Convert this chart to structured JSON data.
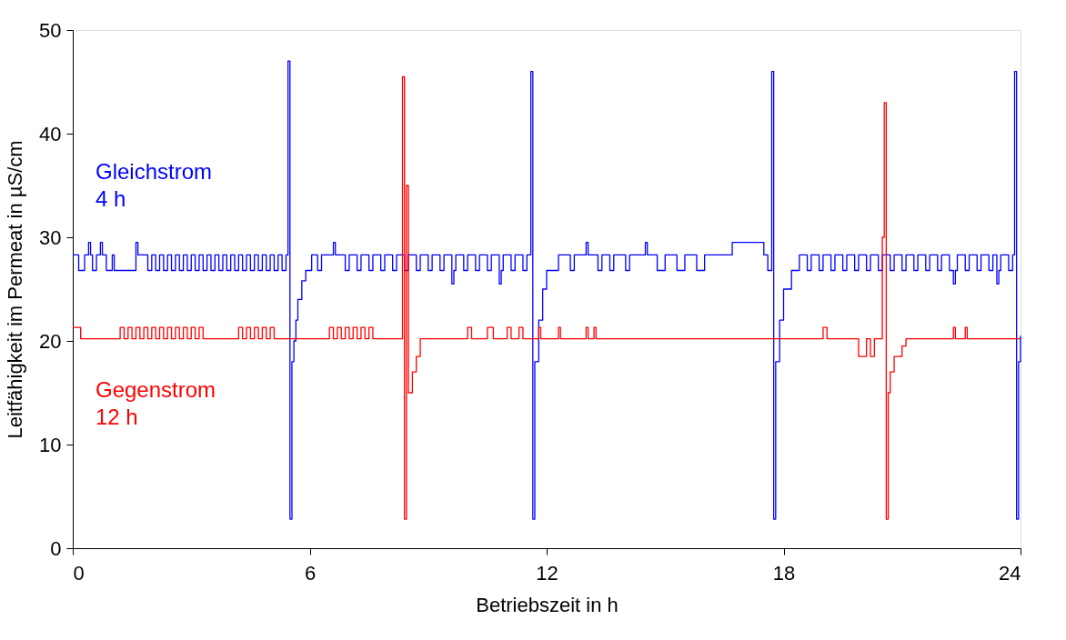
{
  "chart_data": {
    "type": "step",
    "xlabel": "Betriebszeit in h",
    "ylabel": "Leitfähigkeit im Permeat in µS/cm",
    "xlim": [
      0,
      24
    ],
    "ylim": [
      0,
      50
    ],
    "xticks": [
      0,
      6,
      12,
      18,
      24
    ],
    "yticks": [
      0,
      10,
      20,
      30,
      40,
      50
    ],
    "grid": false,
    "marker": "none",
    "line_style": "solid",
    "series": [
      {
        "name": "Gleichstrom 4 h",
        "color": "#0000ff",
        "x": [
          0,
          0.15,
          0.3,
          0.4,
          0.45,
          0.5,
          0.6,
          0.7,
          0.75,
          0.85,
          1.0,
          1.05,
          1.6,
          1.65,
          1.9,
          2.0,
          2.1,
          2.2,
          2.3,
          2.4,
          2.5,
          2.6,
          2.7,
          2.8,
          2.9,
          3.0,
          3.1,
          3.2,
          3.3,
          3.4,
          3.5,
          3.6,
          3.7,
          3.8,
          3.9,
          4.0,
          4.1,
          4.2,
          4.3,
          4.4,
          4.5,
          4.6,
          4.7,
          4.8,
          4.9,
          5.0,
          5.1,
          5.2,
          5.3,
          5.4,
          5.45,
          5.5,
          5.55,
          5.6,
          5.65,
          5.7,
          5.8,
          5.9,
          6.05,
          6.2,
          6.3,
          6.6,
          6.65,
          6.9,
          7.0,
          7.2,
          7.3,
          7.5,
          7.6,
          7.8,
          7.9,
          8.1,
          8.2,
          8.4,
          8.5,
          8.7,
          8.8,
          9.0,
          9.1,
          9.3,
          9.4,
          9.6,
          9.65,
          9.7,
          9.9,
          10.0,
          10.2,
          10.3,
          10.5,
          10.6,
          10.8,
          10.85,
          10.9,
          11.1,
          11.2,
          11.4,
          11.5,
          11.6,
          11.65,
          11.7,
          11.8,
          11.9,
          12.0,
          12.3,
          12.6,
          12.7,
          13.0,
          13.05,
          13.3,
          13.4,
          13.6,
          13.7,
          14.0,
          14.1,
          14.4,
          14.5,
          14.55,
          14.8,
          15.0,
          15.3,
          15.5,
          15.8,
          16.0,
          16.7,
          17.5,
          17.6,
          17.7,
          17.75,
          17.8,
          17.9,
          18.0,
          18.2,
          18.4,
          18.6,
          18.7,
          18.9,
          19.0,
          19.2,
          19.3,
          19.5,
          19.6,
          19.8,
          19.9,
          20.1,
          20.2,
          20.4,
          20.5,
          20.7,
          20.8,
          21.0,
          21.1,
          21.3,
          21.4,
          21.6,
          21.7,
          21.9,
          22.0,
          22.2,
          22.3,
          22.35,
          22.4,
          22.6,
          22.7,
          22.9,
          23.0,
          23.2,
          23.3,
          23.4,
          23.45,
          23.5,
          23.7,
          23.8,
          23.85,
          23.9,
          23.95,
          24
        ],
        "values": [
          28.3,
          26.8,
          28.3,
          29.5,
          28.3,
          26.8,
          28.3,
          29.5,
          28.3,
          26.8,
          28.3,
          26.8,
          29.5,
          28.3,
          26.8,
          28.3,
          26.8,
          28.3,
          26.8,
          28.3,
          26.8,
          28.3,
          26.8,
          28.3,
          26.8,
          28.3,
          26.8,
          28.3,
          26.8,
          28.3,
          26.8,
          28.3,
          26.8,
          28.3,
          26.8,
          28.3,
          26.8,
          28.3,
          26.8,
          28.3,
          26.8,
          28.3,
          26.8,
          28.3,
          26.8,
          28.3,
          26.8,
          28.3,
          26.8,
          28.3,
          47,
          2.8,
          18,
          20,
          22,
          24,
          25.8,
          26.8,
          28.3,
          26.8,
          28.3,
          29.5,
          28.3,
          26.8,
          28.3,
          26.8,
          28.3,
          26.8,
          28.3,
          26.8,
          28.3,
          26.8,
          28.3,
          26.8,
          28.3,
          26.8,
          28.3,
          26.8,
          28.3,
          26.8,
          28.3,
          25.5,
          26.8,
          28.3,
          26.8,
          28.3,
          26.8,
          28.3,
          26.8,
          28.3,
          25.5,
          26.8,
          28.3,
          26.8,
          28.3,
          26.8,
          28.3,
          46,
          2.8,
          18,
          22,
          25,
          26.8,
          28.3,
          26.8,
          28.3,
          29.5,
          28.3,
          26.8,
          28.3,
          26.8,
          28.3,
          26.8,
          28.3,
          28.3,
          29.5,
          28.3,
          26.8,
          28.3,
          26.8,
          28.3,
          26.8,
          28.3,
          29.5,
          28.3,
          26.8,
          46,
          2.8,
          18,
          22,
          25,
          26.8,
          28.3,
          26.8,
          28.3,
          26.8,
          28.3,
          26.8,
          28.3,
          26.8,
          28.3,
          26.8,
          28.3,
          26.8,
          28.3,
          26.8,
          28.3,
          26.8,
          28.3,
          26.8,
          28.3,
          26.8,
          28.3,
          26.8,
          28.3,
          26.8,
          28.3,
          26.8,
          25.5,
          26.8,
          28.3,
          26.8,
          28.3,
          26.8,
          28.3,
          26.8,
          28.3,
          25.5,
          26.8,
          28.3,
          26.8,
          28.3,
          46,
          2.8,
          18,
          20.5
        ]
      },
      {
        "name": "Gegenstrom 12 h",
        "color": "#ff0000",
        "x": [
          0,
          0.2,
          1.2,
          1.3,
          1.4,
          1.5,
          1.6,
          1.7,
          1.8,
          1.9,
          2.0,
          2.1,
          2.2,
          2.3,
          2.4,
          2.5,
          2.6,
          2.7,
          2.8,
          2.9,
          3.0,
          3.1,
          3.2,
          3.3,
          4.2,
          4.3,
          4.4,
          4.5,
          4.6,
          4.7,
          4.8,
          4.9,
          5.0,
          5.1,
          6.5,
          6.6,
          6.7,
          6.8,
          6.9,
          7.0,
          7.1,
          7.2,
          7.3,
          7.4,
          7.5,
          7.6,
          8.3,
          8.35,
          8.4,
          8.45,
          8.5,
          8.6,
          8.7,
          8.8,
          10.0,
          10.1,
          10.5,
          10.65,
          11.0,
          11.1,
          11.3,
          11.4,
          11.8,
          11.85,
          12.3,
          12.35,
          13.0,
          13.05,
          13.2,
          13.25,
          19.0,
          19.1,
          19.9,
          20.1,
          20.2,
          20.3,
          20.5,
          20.55,
          20.6,
          20.65,
          20.7,
          20.8,
          20.9,
          21.0,
          21.1,
          22.3,
          22.35,
          22.6,
          22.65,
          24
        ],
        "values": [
          21.3,
          20.2,
          21.3,
          20.2,
          21.3,
          20.2,
          21.3,
          20.2,
          21.3,
          20.2,
          21.3,
          20.2,
          21.3,
          20.2,
          21.3,
          20.2,
          21.3,
          20.2,
          21.3,
          20.2,
          21.3,
          20.2,
          21.3,
          20.2,
          21.3,
          20.2,
          21.3,
          20.2,
          21.3,
          20.2,
          21.3,
          20.2,
          21.3,
          20.2,
          21.3,
          20.2,
          21.3,
          20.2,
          21.3,
          20.2,
          21.3,
          20.2,
          21.3,
          20.2,
          21.3,
          20.2,
          20.2,
          45.5,
          2.8,
          35,
          15,
          17,
          18.5,
          20.2,
          21.3,
          20.2,
          21.3,
          20.2,
          21.3,
          20.2,
          21.3,
          20.2,
          21.3,
          20.2,
          21.3,
          20.2,
          21.3,
          20.2,
          21.3,
          20.2,
          21.3,
          20.2,
          18.5,
          20.2,
          18.5,
          20.2,
          30,
          43,
          2.8,
          15,
          17,
          18.5,
          18.5,
          19.5,
          20.2,
          21.3,
          20.2,
          21.3,
          20.2,
          20.2
        ]
      }
    ]
  }
}
